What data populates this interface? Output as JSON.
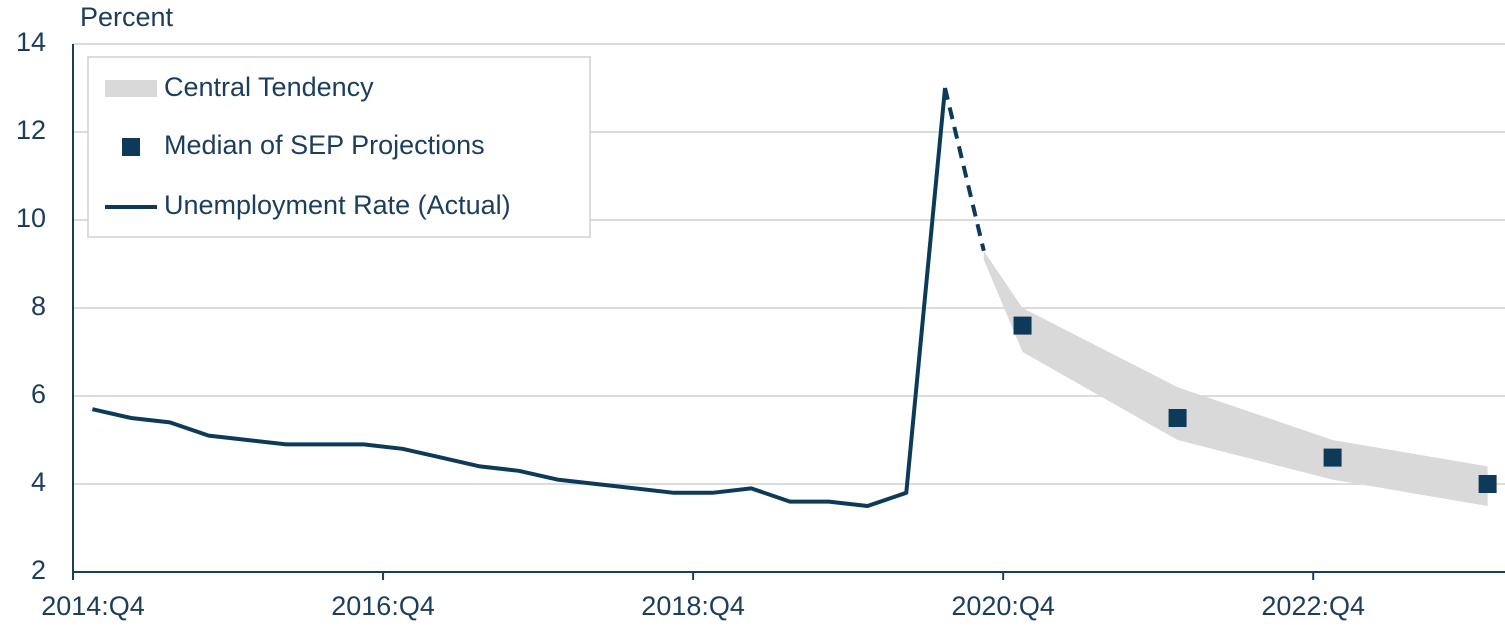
{
  "chart_data": {
    "type": "line",
    "y_label": "Percent",
    "categories": [
      "2014:Q4",
      null,
      null,
      null,
      null,
      null,
      null,
      null,
      "2016:Q4",
      null,
      null,
      null,
      null,
      null,
      null,
      null,
      "2018:Q4",
      null,
      null,
      null,
      null,
      null,
      null,
      null,
      "2020:Q4",
      null,
      null,
      null,
      null,
      null,
      null,
      null,
      "2022:Q4",
      null,
      null,
      null,
      null
    ],
    "ylim": [
      2,
      14
    ],
    "yticks": [
      2,
      4,
      6,
      8,
      10,
      12,
      14
    ],
    "grid": true,
    "legend": "top-left",
    "band": {
      "name": "Central Tendency",
      "color": "#d9d9d9",
      "low": [
        null,
        null,
        null,
        null,
        null,
        null,
        null,
        null,
        null,
        null,
        null,
        null,
        null,
        null,
        null,
        null,
        null,
        null,
        null,
        null,
        null,
        null,
        null,
        9.1,
        7.0,
        null,
        null,
        null,
        5.0,
        null,
        null,
        null,
        4.1,
        null,
        null,
        null,
        3.5
      ],
      "high": [
        null,
        null,
        null,
        null,
        null,
        null,
        null,
        null,
        null,
        null,
        null,
        null,
        null,
        null,
        null,
        null,
        null,
        null,
        null,
        null,
        null,
        null,
        null,
        9.3,
        8.0,
        null,
        null,
        null,
        6.2,
        null,
        null,
        null,
        5.0,
        null,
        null,
        null,
        4.4
      ]
    },
    "series": [
      {
        "name": "Median of SEP Projections",
        "color": "#0e3a5a",
        "marker": "square",
        "values": [
          null,
          null,
          null,
          null,
          null,
          null,
          null,
          null,
          null,
          null,
          null,
          null,
          null,
          null,
          null,
          null,
          null,
          null,
          null,
          null,
          null,
          null,
          null,
          null,
          7.6,
          null,
          null,
          null,
          5.5,
          null,
          null,
          null,
          4.6,
          null,
          null,
          null,
          4.0
        ]
      },
      {
        "name": "Unemployment Rate (Actual)",
        "color": "#0e3a5a",
        "style": "solid",
        "values": [
          5.7,
          5.5,
          5.4,
          5.1,
          5.0,
          4.9,
          4.9,
          4.9,
          4.8,
          4.6,
          4.4,
          4.3,
          4.1,
          4.0,
          3.9,
          3.8,
          3.8,
          3.9,
          3.6,
          3.6,
          3.5,
          3.8,
          13.0,
          null,
          null,
          null,
          null,
          null,
          null,
          null,
          null,
          null,
          null,
          null,
          null,
          null,
          null
        ]
      },
      {
        "color": "#0e3a5a",
        "style": "dashed",
        "values": [
          null,
          null,
          null,
          null,
          null,
          null,
          null,
          null,
          null,
          null,
          null,
          null,
          null,
          null,
          null,
          null,
          null,
          null,
          null,
          null,
          null,
          null,
          13.0,
          9.3,
          null,
          null,
          null,
          null,
          null,
          null,
          null,
          null,
          null,
          null,
          null,
          null,
          null
        ]
      }
    ]
  }
}
